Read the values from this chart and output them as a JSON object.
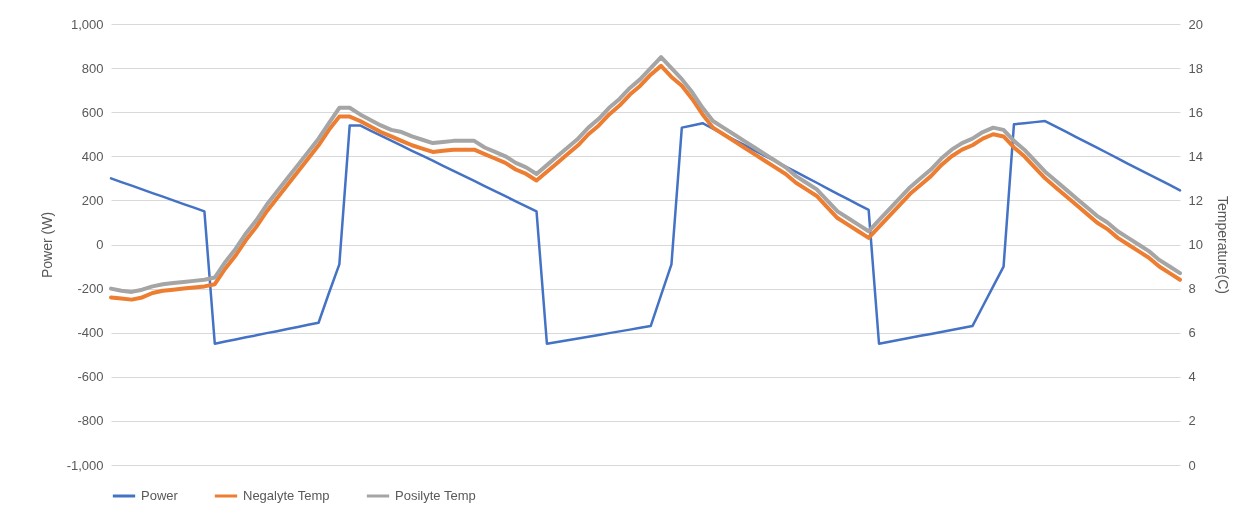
{
  "chart_data": {
    "type": "line",
    "ylabel": "Power (W)",
    "y2label": "Temperature(C)",
    "categories": [
      null,
      null,
      null,
      null,
      null,
      null,
      null,
      null,
      null,
      null,
      null,
      null,
      null,
      null,
      null,
      null,
      null,
      null,
      null,
      null,
      null,
      null,
      null,
      null,
      null,
      null,
      null,
      null,
      null,
      null,
      null,
      null,
      null,
      null,
      null,
      null,
      null,
      null,
      null,
      null,
      null,
      null,
      null,
      null,
      null,
      null,
      null,
      null,
      null,
      null,
      null,
      null,
      null,
      null,
      null,
      null,
      null,
      null,
      null,
      null,
      null,
      null,
      null,
      null,
      null,
      null,
      null,
      null,
      null,
      null,
      null,
      null,
      null,
      null,
      null,
      null,
      null,
      null,
      null,
      null,
      null,
      null,
      null,
      null,
      null,
      null,
      null,
      null,
      null,
      null,
      null,
      null,
      null,
      null,
      null,
      null,
      null,
      null,
      null,
      null,
      null,
      null,
      null,
      null
    ],
    "series": [
      {
        "name": "Power",
        "color": "#4472c4",
        "values": [
          300,
          283,
          267,
          250,
          233,
          217,
          200,
          183,
          167,
          150,
          -450,
          -440,
          -431,
          -421,
          -412,
          -402,
          -393,
          -383,
          -374,
          -364,
          -355,
          -220,
          -90,
          540,
          540,
          517,
          494,
          471,
          448,
          425,
          403,
          380,
          357,
          334,
          311,
          288,
          265,
          242,
          219,
          196,
          173,
          150,
          -450,
          -442,
          -434,
          -426,
          -418,
          -410,
          -402,
          -394,
          -386,
          -378,
          -370,
          -230,
          -90,
          530,
          540,
          550,
          525,
          501,
          476,
          452,
          427,
          402,
          378,
          353,
          329,
          304,
          280,
          255,
          230,
          206,
          181,
          157,
          -450,
          -441,
          -432,
          -423,
          -414,
          -406,
          -397,
          -388,
          -379,
          -370,
          -280,
          -190,
          -100,
          545,
          550,
          555,
          560,
          536,
          512,
          487,
          463,
          439,
          415,
          391,
          366,
          342,
          318,
          294,
          270,
          245
        ]
      },
      {
        "name": "Negalyte Temp",
        "color": "#ed7d31",
        "axis": "y2",
        "values": [
          7.6,
          7.55,
          7.5,
          7.6,
          7.8,
          7.9,
          7.95,
          8.0,
          8.05,
          8.1,
          8.2,
          8.9,
          9.5,
          10.2,
          10.8,
          11.5,
          12.1,
          12.7,
          13.3,
          13.9,
          14.5,
          15.2,
          15.8,
          15.8,
          15.6,
          15.35,
          15.1,
          14.9,
          14.7,
          14.5,
          14.35,
          14.2,
          14.25,
          14.3,
          14.3,
          14.3,
          14.1,
          13.9,
          13.7,
          13.4,
          13.2,
          12.9,
          13.3,
          13.7,
          14.1,
          14.5,
          15.0,
          15.4,
          15.9,
          16.3,
          16.8,
          17.2,
          17.7,
          18.1,
          17.6,
          17.2,
          16.6,
          15.9,
          15.3,
          15.0,
          14.7,
          14.4,
          14.1,
          13.8,
          13.5,
          13.2,
          12.8,
          12.5,
          12.2,
          11.7,
          11.2,
          10.9,
          10.6,
          10.3,
          10.8,
          11.3,
          11.8,
          12.3,
          12.7,
          13.1,
          13.6,
          14.0,
          14.3,
          14.5,
          14.8,
          15.0,
          14.9,
          14.4,
          14.0,
          13.5,
          13.0,
          12.6,
          12.2,
          11.8,
          11.4,
          11.0,
          10.7,
          10.3,
          10.0,
          9.7,
          9.4,
          9.0,
          8.7,
          8.4
        ]
      },
      {
        "name": "Posilyte Temp",
        "color": "#a5a5a5",
        "axis": "y2",
        "values": [
          8.0,
          7.9,
          7.85,
          7.95,
          8.1,
          8.2,
          8.25,
          8.3,
          8.35,
          8.4,
          8.5,
          9.2,
          9.8,
          10.5,
          11.1,
          11.8,
          12.4,
          13.0,
          13.6,
          14.2,
          14.8,
          15.5,
          16.2,
          16.2,
          15.9,
          15.65,
          15.4,
          15.2,
          15.1,
          14.9,
          14.75,
          14.6,
          14.65,
          14.7,
          14.7,
          14.7,
          14.4,
          14.2,
          14.0,
          13.7,
          13.5,
          13.2,
          13.6,
          14.0,
          14.4,
          14.8,
          15.3,
          15.7,
          16.2,
          16.6,
          17.1,
          17.5,
          18.0,
          18.5,
          18.0,
          17.5,
          16.9,
          16.2,
          15.6,
          15.3,
          15.0,
          14.7,
          14.4,
          14.1,
          13.8,
          13.5,
          13.1,
          12.8,
          12.5,
          12.0,
          11.5,
          11.2,
          10.9,
          10.6,
          11.1,
          11.6,
          12.1,
          12.6,
          13.0,
          13.4,
          13.9,
          14.3,
          14.6,
          14.8,
          15.1,
          15.3,
          15.2,
          14.7,
          14.3,
          13.8,
          13.3,
          12.9,
          12.5,
          12.1,
          11.7,
          11.3,
          11.0,
          10.6,
          10.3,
          10.0,
          9.7,
          9.3,
          9.0,
          8.7
        ]
      }
    ],
    "ylim": [
      -1000,
      1000
    ],
    "yticks": [
      {
        "value": -1000,
        "label": "-1,000"
      },
      -800,
      -600,
      -400,
      -200,
      0,
      200,
      400,
      600,
      800,
      {
        "value": 1000,
        "label": "1,000"
      }
    ],
    "y2lim": [
      0,
      20
    ],
    "y2ticks": [
      0,
      2,
      4,
      6,
      8,
      10,
      12,
      14,
      16,
      18,
      20
    ],
    "grid": "y",
    "legend": "bottom"
  }
}
